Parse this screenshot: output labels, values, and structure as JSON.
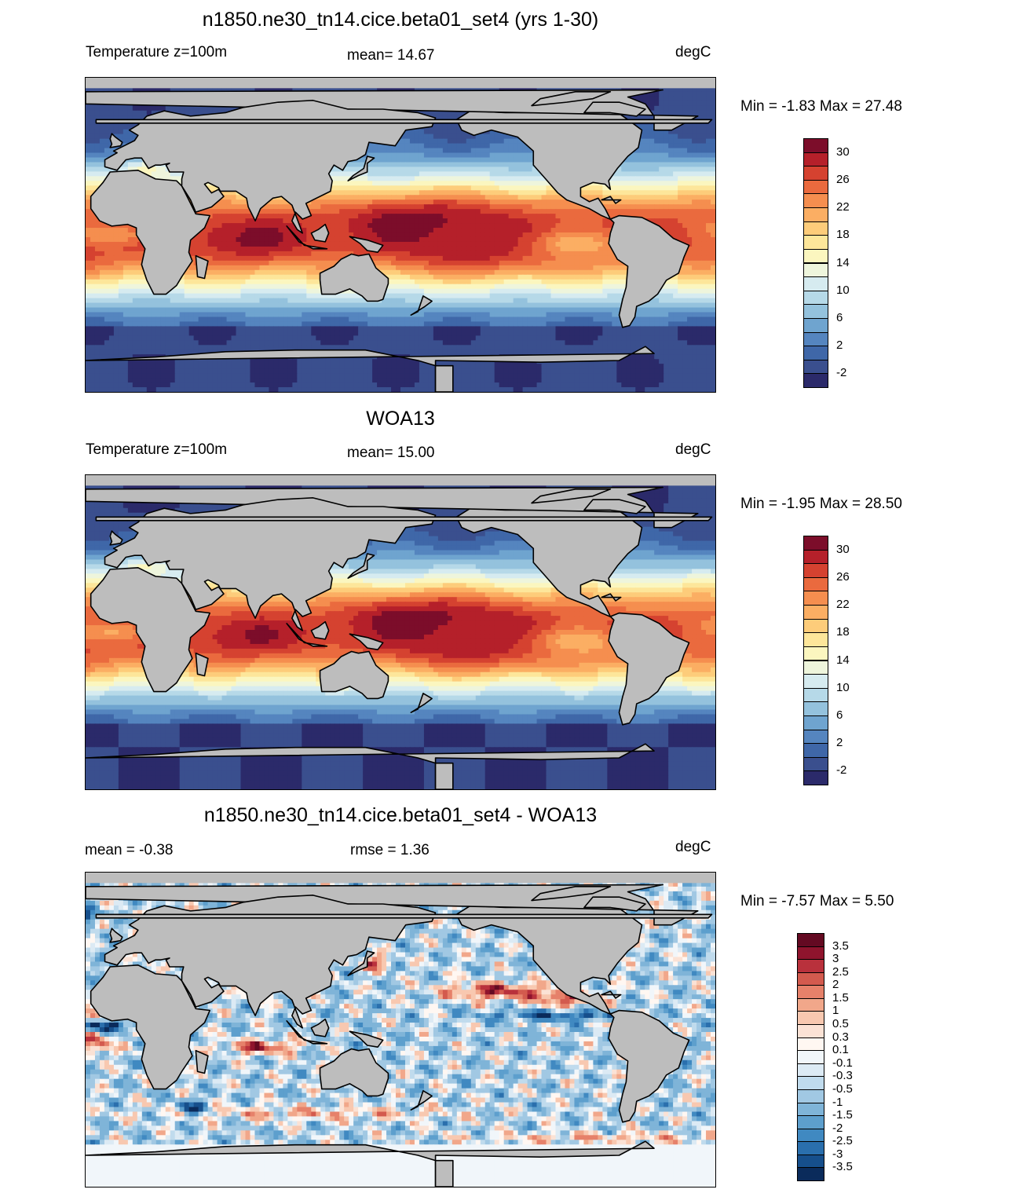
{
  "panels": [
    {
      "title": "n1850.ne30_tn14.cice.beta01_set4 (yrs 1-30)",
      "left_label": "Temperature z=100m",
      "center_label": "mean=  14.67",
      "right_label": "degC",
      "minmax": "Min =  -1.83 Max =  27.48",
      "field": "model"
    },
    {
      "title": "WOA13",
      "left_label": "Temperature z=100m",
      "center_label": "mean=  15.00",
      "right_label": "degC",
      "minmax": "Min =  -1.95 Max =  28.50",
      "field": "obs"
    },
    {
      "title": "n1850.ne30_tn14.cice.beta01_set4 - WOA13",
      "left_label": "mean =  -0.38",
      "center_label": "rmse =   1.36",
      "right_label": "degC",
      "minmax": "Min =  -7.57 Max =   5.50",
      "field": "diff"
    }
  ],
  "colorbars": {
    "temperature": {
      "colors": [
        "#2b2a6a",
        "#3a4f8e",
        "#3f67a8",
        "#5585bf",
        "#6fa4cf",
        "#94c2dd",
        "#b6d9e8",
        "#d6ebf0",
        "#eef5dc",
        "#fbf6bf",
        "#fde69a",
        "#fdcc7a",
        "#fbae63",
        "#f58e4f",
        "#ea6a3e",
        "#d54230",
        "#b5202a",
        "#7c0d2a"
      ],
      "labels": [
        "30",
        "26",
        "22",
        "18",
        "14",
        "10",
        "6",
        "2",
        "-2"
      ]
    },
    "difference": {
      "colors": [
        "#0a2b5b",
        "#164f8c",
        "#2a6fad",
        "#4089c1",
        "#5d9fcd",
        "#7fb4d8",
        "#a1c8e3",
        "#c0dbed",
        "#dceaf4",
        "#f1f6fa",
        "#fff7f2",
        "#fbe2d5",
        "#f8c8b0",
        "#f1a78a",
        "#e6816a",
        "#d35a4e",
        "#b9313c",
        "#8f142d",
        "#640a22"
      ],
      "labels": [
        "3.5",
        "3",
        "2.5",
        "2",
        "1.5",
        "1",
        "0.5",
        "0.3",
        "0.1",
        "-0.1",
        "-0.3",
        "-0.5",
        "-1",
        "-1.5",
        "-2",
        "-2.5",
        "-3",
        "-3.5"
      ]
    }
  }
}
